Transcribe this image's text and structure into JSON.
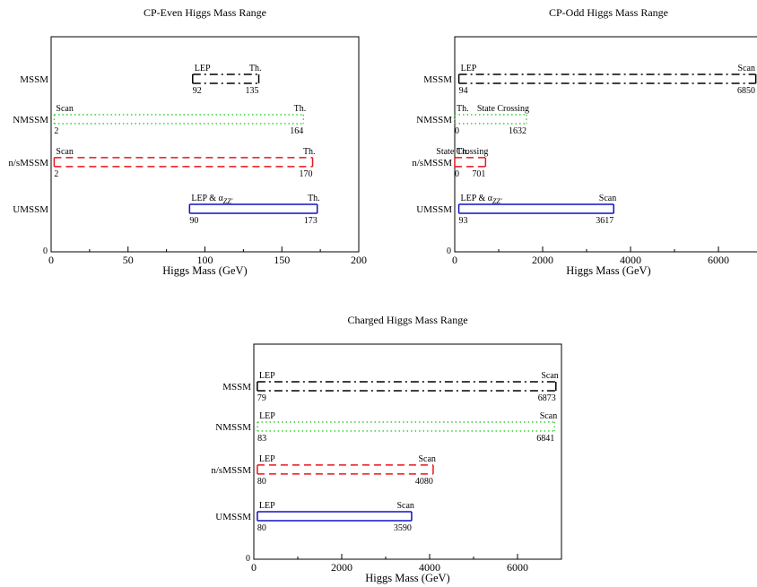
{
  "chart_data": [
    {
      "type": "range",
      "title": "CP-Even Higgs Mass Range",
      "xlabel": "Higgs Mass (GeV)",
      "ylabel": "",
      "xlim": [
        0,
        200
      ],
      "xticks": [
        0,
        50,
        100,
        150,
        200
      ],
      "yticks": [
        0
      ],
      "grid": false,
      "categories": [
        "MSSM",
        "NMSSM",
        "n/sMSSM",
        "UMSSM"
      ],
      "ranges": [
        {
          "model": "MSSM",
          "low": 92,
          "high": 135,
          "low_label": "LEP",
          "high_label": "Th.",
          "style": "dash-dot",
          "color": "#000000"
        },
        {
          "model": "NMSSM",
          "low": 2,
          "high": 164,
          "low_label": "Scan",
          "high_label": "Th.",
          "style": "dotted",
          "color": "#22cc22"
        },
        {
          "model": "n/sMSSM",
          "low": 2,
          "high": 170,
          "low_label": "Scan",
          "high_label": "Th.",
          "style": "dashed",
          "color": "#e8161b"
        },
        {
          "model": "UMSSM",
          "low": 90,
          "high": 173,
          "low_label": "LEP & α",
          "low_label_sub": "ZZ'",
          "high_label": "Th.",
          "style": "solid",
          "color": "#1010c8"
        }
      ]
    },
    {
      "type": "range",
      "title": "CP-Odd Higgs Mass Range",
      "xlabel": "Higgs Mass (GeV)",
      "ylabel": "",
      "xlim": [
        0,
        7000
      ],
      "xticks": [
        0,
        2000,
        4000,
        6000
      ],
      "yticks": [
        0
      ],
      "grid": false,
      "categories": [
        "MSSM",
        "NMSSM",
        "n/sMSSM",
        "UMSSM"
      ],
      "ranges": [
        {
          "model": "MSSM",
          "low": 94,
          "high": 6850,
          "low_label": "LEP",
          "high_label": "Scan",
          "style": "dash-dot",
          "color": "#000000"
        },
        {
          "model": "NMSSM",
          "low": 0,
          "high": 1632,
          "low_label": "Th.",
          "high_label": "State Crossing",
          "style": "dotted",
          "color": "#22cc22"
        },
        {
          "model": "n/sMSSM",
          "low": 0,
          "high": 701,
          "low_label": "Th.",
          "high_label": "State Crossing",
          "style": "dashed",
          "color": "#e8161b"
        },
        {
          "model": "UMSSM",
          "low": 93,
          "high": 3617,
          "low_label": "LEP & α",
          "low_label_sub": "ZZ'",
          "high_label": "Scan",
          "style": "solid",
          "color": "#1010c8"
        }
      ]
    },
    {
      "type": "range",
      "title": "Charged Higgs Mass Range",
      "xlabel": "Higgs Mass (GeV)",
      "ylabel": "",
      "xlim": [
        0,
        7000
      ],
      "xticks": [
        0,
        2000,
        4000,
        6000
      ],
      "yticks": [
        0
      ],
      "grid": false,
      "categories": [
        "MSSM",
        "NMSSM",
        "n/sMSSM",
        "UMSSM"
      ],
      "ranges": [
        {
          "model": "MSSM",
          "low": 79,
          "high": 6873,
          "low_label": "LEP",
          "high_label": "Scan",
          "style": "dash-dot",
          "color": "#000000"
        },
        {
          "model": "NMSSM",
          "low": 83,
          "high": 6841,
          "low_label": "LEP",
          "high_label": "Scan",
          "style": "dotted",
          "color": "#22cc22"
        },
        {
          "model": "n/sMSSM",
          "low": 80,
          "high": 4080,
          "low_label": "LEP",
          "high_label": "Scan",
          "style": "dashed",
          "color": "#e8161b"
        },
        {
          "model": "UMSSM",
          "low": 80,
          "high": 3590,
          "low_label": "LEP",
          "high_label": "Scan",
          "style": "solid",
          "color": "#1010c8"
        }
      ]
    }
  ]
}
